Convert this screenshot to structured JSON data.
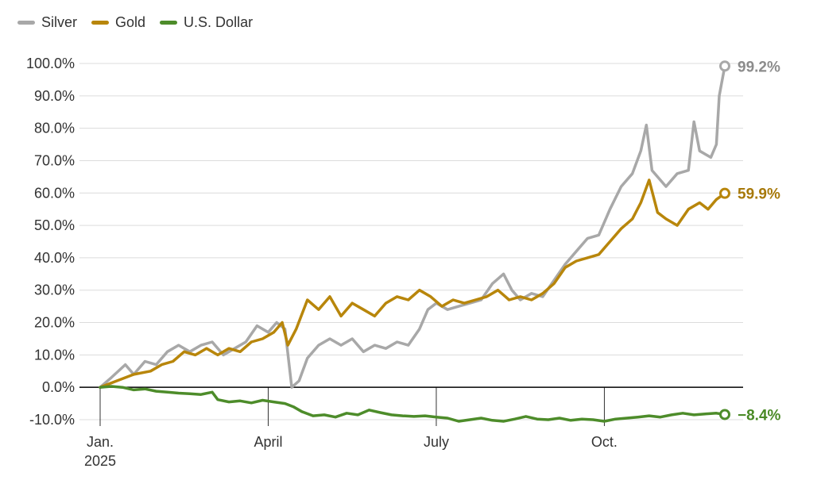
{
  "chart_data": {
    "type": "line",
    "title": "",
    "xlabel": "",
    "ylabel": "",
    "ylim": [
      -10,
      100
    ],
    "y_ticks": [
      "100.0%",
      "90.0%",
      "80.0%",
      "70.0%",
      "60.0%",
      "50.0%",
      "40.0%",
      "30.0%",
      "20.0%",
      "10.0%",
      "0.0%",
      "-10.0%"
    ],
    "y_tick_values": [
      100,
      90,
      80,
      70,
      60,
      50,
      40,
      30,
      20,
      10,
      0,
      -10
    ],
    "x_ticks": [
      "Jan.",
      "April",
      "July",
      "Oct."
    ],
    "x_tick_months": [
      0,
      3,
      6,
      9
    ],
    "x_year_label": "2025",
    "xlim_months": [
      0,
      11.15
    ],
    "series": [
      {
        "name": "Silver",
        "color": "#a8a8a8",
        "end_label": "99.2%",
        "label_color": "#8c8c8c",
        "points": [
          [
            0,
            0
          ],
          [
            0.2,
            3
          ],
          [
            0.45,
            7
          ],
          [
            0.6,
            4
          ],
          [
            0.8,
            8
          ],
          [
            1.0,
            7
          ],
          [
            1.2,
            11
          ],
          [
            1.4,
            13
          ],
          [
            1.6,
            11
          ],
          [
            1.8,
            13
          ],
          [
            2.0,
            14
          ],
          [
            2.2,
            10
          ],
          [
            2.4,
            12
          ],
          [
            2.6,
            14
          ],
          [
            2.8,
            19
          ],
          [
            3.0,
            17
          ],
          [
            3.15,
            20
          ],
          [
            3.3,
            18
          ],
          [
            3.42,
            0
          ],
          [
            3.55,
            2
          ],
          [
            3.7,
            9
          ],
          [
            3.9,
            13
          ],
          [
            4.1,
            15
          ],
          [
            4.3,
            13
          ],
          [
            4.5,
            15
          ],
          [
            4.7,
            11
          ],
          [
            4.9,
            13
          ],
          [
            5.1,
            12
          ],
          [
            5.3,
            14
          ],
          [
            5.5,
            13
          ],
          [
            5.7,
            18
          ],
          [
            5.85,
            24
          ],
          [
            6.0,
            26
          ],
          [
            6.2,
            24
          ],
          [
            6.4,
            25
          ],
          [
            6.6,
            26
          ],
          [
            6.8,
            27
          ],
          [
            7.0,
            32
          ],
          [
            7.2,
            35
          ],
          [
            7.35,
            30
          ],
          [
            7.5,
            27
          ],
          [
            7.7,
            29
          ],
          [
            7.9,
            28
          ],
          [
            8.1,
            33
          ],
          [
            8.3,
            38
          ],
          [
            8.5,
            42
          ],
          [
            8.7,
            46
          ],
          [
            8.9,
            47
          ],
          [
            9.1,
            55
          ],
          [
            9.3,
            62
          ],
          [
            9.5,
            66
          ],
          [
            9.65,
            73
          ],
          [
            9.75,
            81
          ],
          [
            9.85,
            67
          ],
          [
            9.95,
            65
          ],
          [
            10.1,
            62
          ],
          [
            10.3,
            66
          ],
          [
            10.5,
            67
          ],
          [
            10.6,
            82
          ],
          [
            10.7,
            73
          ],
          [
            10.9,
            71
          ],
          [
            11.0,
            75
          ],
          [
            11.05,
            90
          ],
          [
            11.15,
            99.2
          ]
        ]
      },
      {
        "name": "Gold",
        "color": "#b8860b",
        "end_label": "59.9%",
        "label_color": "#a7790a",
        "points": [
          [
            0,
            0
          ],
          [
            0.3,
            2
          ],
          [
            0.6,
            4
          ],
          [
            0.9,
            5
          ],
          [
            1.1,
            7
          ],
          [
            1.3,
            8
          ],
          [
            1.5,
            11
          ],
          [
            1.7,
            10
          ],
          [
            1.9,
            12
          ],
          [
            2.1,
            10
          ],
          [
            2.3,
            12
          ],
          [
            2.5,
            11
          ],
          [
            2.7,
            14
          ],
          [
            2.9,
            15
          ],
          [
            3.1,
            17
          ],
          [
            3.25,
            20
          ],
          [
            3.35,
            13
          ],
          [
            3.5,
            18
          ],
          [
            3.7,
            27
          ],
          [
            3.9,
            24
          ],
          [
            4.1,
            28
          ],
          [
            4.3,
            22
          ],
          [
            4.5,
            26
          ],
          [
            4.7,
            24
          ],
          [
            4.9,
            22
          ],
          [
            5.1,
            26
          ],
          [
            5.3,
            28
          ],
          [
            5.5,
            27
          ],
          [
            5.7,
            30
          ],
          [
            5.9,
            28
          ],
          [
            6.1,
            25
          ],
          [
            6.3,
            27
          ],
          [
            6.5,
            26
          ],
          [
            6.7,
            27
          ],
          [
            6.9,
            28
          ],
          [
            7.1,
            30
          ],
          [
            7.3,
            27
          ],
          [
            7.5,
            28
          ],
          [
            7.7,
            27
          ],
          [
            7.9,
            29
          ],
          [
            8.1,
            32
          ],
          [
            8.3,
            37
          ],
          [
            8.5,
            39
          ],
          [
            8.7,
            40
          ],
          [
            8.9,
            41
          ],
          [
            9.1,
            45
          ],
          [
            9.3,
            49
          ],
          [
            9.5,
            52
          ],
          [
            9.65,
            57
          ],
          [
            9.8,
            64
          ],
          [
            9.95,
            54
          ],
          [
            10.1,
            52
          ],
          [
            10.3,
            50
          ],
          [
            10.5,
            55
          ],
          [
            10.7,
            57
          ],
          [
            10.85,
            55
          ],
          [
            11.0,
            58
          ],
          [
            11.15,
            59.9
          ]
        ]
      },
      {
        "name": "U.S. Dollar",
        "color": "#4d8c2a",
        "end_label": "−8.4%",
        "label_color": "#4a8a26",
        "points": [
          [
            0,
            0
          ],
          [
            0.2,
            0.3
          ],
          [
            0.4,
            0
          ],
          [
            0.6,
            -0.8
          ],
          [
            0.8,
            -0.5
          ],
          [
            1.0,
            -1.2
          ],
          [
            1.2,
            -1.5
          ],
          [
            1.4,
            -1.8
          ],
          [
            1.6,
            -2.0
          ],
          [
            1.8,
            -2.2
          ],
          [
            2.0,
            -1.5
          ],
          [
            2.1,
            -3.8
          ],
          [
            2.3,
            -4.5
          ],
          [
            2.5,
            -4.2
          ],
          [
            2.7,
            -4.8
          ],
          [
            2.9,
            -4.0
          ],
          [
            3.1,
            -4.5
          ],
          [
            3.3,
            -5.0
          ],
          [
            3.45,
            -6.0
          ],
          [
            3.6,
            -7.5
          ],
          [
            3.8,
            -8.8
          ],
          [
            4.0,
            -8.5
          ],
          [
            4.2,
            -9.2
          ],
          [
            4.4,
            -8.0
          ],
          [
            4.6,
            -8.5
          ],
          [
            4.8,
            -7.0
          ],
          [
            5.0,
            -7.8
          ],
          [
            5.2,
            -8.5
          ],
          [
            5.4,
            -8.8
          ],
          [
            5.6,
            -9.0
          ],
          [
            5.8,
            -8.8
          ],
          [
            6.0,
            -9.2
          ],
          [
            6.2,
            -9.5
          ],
          [
            6.4,
            -10.5
          ],
          [
            6.6,
            -10.0
          ],
          [
            6.8,
            -9.5
          ],
          [
            7.0,
            -10.2
          ],
          [
            7.2,
            -10.5
          ],
          [
            7.4,
            -9.8
          ],
          [
            7.6,
            -9.0
          ],
          [
            7.8,
            -9.8
          ],
          [
            8.0,
            -10.0
          ],
          [
            8.2,
            -9.5
          ],
          [
            8.4,
            -10.2
          ],
          [
            8.6,
            -9.8
          ],
          [
            8.8,
            -10.0
          ],
          [
            9.0,
            -10.5
          ],
          [
            9.2,
            -9.8
          ],
          [
            9.4,
            -9.5
          ],
          [
            9.6,
            -9.2
          ],
          [
            9.8,
            -8.8
          ],
          [
            10.0,
            -9.2
          ],
          [
            10.2,
            -8.5
          ],
          [
            10.4,
            -8.0
          ],
          [
            10.6,
            -8.5
          ],
          [
            10.8,
            -8.2
          ],
          [
            11.0,
            -8.0
          ],
          [
            11.15,
            -8.4
          ]
        ]
      }
    ]
  }
}
